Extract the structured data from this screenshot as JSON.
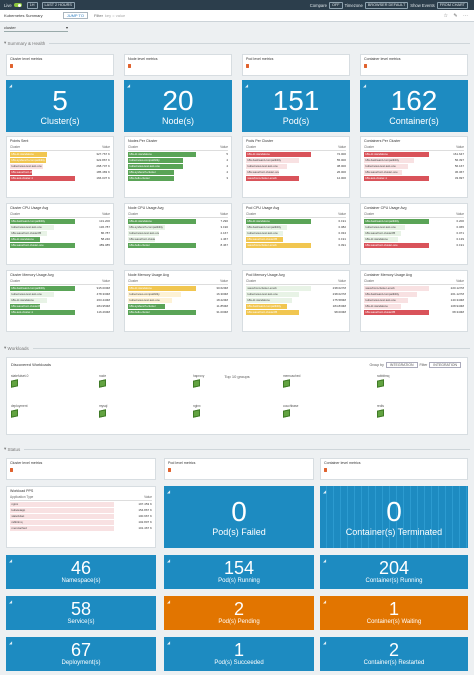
{
  "topbar": {
    "live": "Live",
    "one_h": "1H",
    "last": "LAST 2 HOURS",
    "compare": "Compare",
    "compare_val": "OFF",
    "timezone": "Timezone",
    "timezone_val": "BROWSER DEFAULT",
    "show_events": "Show Events",
    "show_events_val": "FROM CHART"
  },
  "dashbar": {
    "title": "Kubernetes Summary",
    "jump": "JUMP TO",
    "filter": "Filter",
    "filter_ph": "key = value"
  },
  "variable": {
    "label": "cluster"
  },
  "sections": {
    "summary": "Summary & Health",
    "workloads": "Workloads",
    "status": "Status"
  },
  "row1_titles": [
    "Cluster level metrics",
    "Node level metrics",
    "Pod level metrics",
    "Container level metrics"
  ],
  "stats1": [
    {
      "num": "5",
      "label": "Cluster(s)"
    },
    {
      "num": "20",
      "label": "Node(s)"
    },
    {
      "num": "151",
      "label": "Pod(s)"
    },
    {
      "num": "162",
      "label": "Container(s)"
    }
  ],
  "tables": [
    {
      "title": "Points Sent",
      "col": "Cluster",
      "val": "Value",
      "rows": [
        {
          "t": "k8s-dr-standalone",
          "v": "327.767 K",
          "c": "y",
          "w": 0.5
        },
        {
          "t": "k8s-sysbench-compatibility",
          "v": "322.867 K",
          "c": "y",
          "w": 0.48
        },
        {
          "t": "kubernetes-test-test-one",
          "v": "268.707 K",
          "c": "lr",
          "w": 0.45
        },
        {
          "t": "k8s-wavefront-cluster",
          "v": "185.483 K",
          "c": "r",
          "w": 0.3
        },
        {
          "t": "k8s-test-cluster-1",
          "v": "166.037 K",
          "c": "r",
          "w": 0.88
        }
      ]
    },
    {
      "title": "Nodes Per Cluster",
      "col": "Cluster",
      "val": "Value",
      "rows": [
        {
          "t": "k8s-dr-standalone",
          "v": "5",
          "c": "g",
          "w": 0.92
        },
        {
          "t": "kubernetes-compatibility",
          "v": "4",
          "c": "g",
          "w": 0.74
        },
        {
          "t": "kubernetes-test-test-one",
          "v": "4",
          "c": "g",
          "w": 0.74
        },
        {
          "t": "k8s-sysbench-cluster",
          "v": "4",
          "c": "g",
          "w": 0.62
        },
        {
          "t": "k8s-hello-cluster",
          "v": "3",
          "c": "g",
          "w": 0.62
        }
      ]
    },
    {
      "title": "Pods Per Cluster",
      "col": "Cluster",
      "val": "Value",
      "rows": [
        {
          "t": "k8s-dr-standalone",
          "v": "72.000",
          "c": "r",
          "w": 0.88
        },
        {
          "t": "k8s-backward-compatibility",
          "v": "55.000",
          "c": "lr",
          "w": 0.72
        },
        {
          "t": "kubernetes-test-test-one",
          "v": "38.000",
          "c": "lr",
          "w": 0.56
        },
        {
          "t": "k8s-wavefront-cluster-one",
          "v": "26.000",
          "c": "lr",
          "w": 0.44
        },
        {
          "t": "wavefront-cluster-emob",
          "v": "12.000",
          "c": "r",
          "w": 0.72
        }
      ]
    },
    {
      "title": "Containers Per Cluster",
      "col": "Cluster",
      "val": "Value",
      "rows": [
        {
          "t": "k8s-dr-standalone",
          "v": "161.647",
          "c": "r",
          "w": 0.88
        },
        {
          "t": "k8s-backward-compatibility",
          "v": "56.397",
          "c": "lr",
          "w": 0.68
        },
        {
          "t": "kubernetes-test-test-one",
          "v": "56.167",
          "c": "lr",
          "w": 0.6
        },
        {
          "t": "k8s-wavefront-cluster-one",
          "v": "36.367",
          "c": "lr",
          "w": 0.52
        },
        {
          "t": "k8s-test-cluster-1",
          "v": "33.997",
          "c": "r",
          "w": 0.88
        }
      ]
    },
    {
      "title": "Cluster CPU Usage Avg",
      "col": "Cluster",
      "val": "Value",
      "rows": [
        {
          "t": "k8s-backward-compatibility",
          "v": "131.200",
          "c": "g",
          "w": 0.88
        },
        {
          "t": "kubernetes-test-test-one",
          "v": "136.787",
          "c": "lg",
          "w": 0.6
        },
        {
          "t": "k8s-wavefront-cluster#5",
          "v": "86.787",
          "c": "lg",
          "w": 0.5
        },
        {
          "t": "k8s-dr-standalone",
          "v": "58.240",
          "c": "g",
          "w": 0.4
        },
        {
          "t": "k8s-wavefront-cluster-one",
          "v": "489.085",
          "c": "g",
          "w": 0.88
        }
      ]
    },
    {
      "title": "Node CPU Usage Avg",
      "col": "Cluster",
      "val": "Value",
      "rows": [
        {
          "t": "k8s-dr-standalone",
          "v": "7.290",
          "c": "g",
          "w": 0.92
        },
        {
          "t": "k8s-sysbench-compatibility",
          "v": "3.190",
          "c": "lg",
          "w": 0.5
        },
        {
          "t": "kubernetes-test-test-one",
          "v": "2.167",
          "c": "lg",
          "w": 0.42
        },
        {
          "t": "k8s-wavefront-cluster#5",
          "v": "1.467",
          "c": "lg",
          "w": 0.36
        },
        {
          "t": "k8s-hello-cluster",
          "v": "8.467",
          "c": "g",
          "w": 0.92
        }
      ]
    },
    {
      "title": "Pod CPU Usage Avg",
      "col": "Cluster",
      "val": "Value",
      "rows": [
        {
          "t": "k8s-dr-standalone",
          "v": "0.191",
          "c": "g",
          "w": 0.88
        },
        {
          "t": "k8s-backward-compatibility",
          "v": "0.082",
          "c": "lg",
          "w": 0.56
        },
        {
          "t": "kubernetes-test-test-one",
          "v": "0.034",
          "c": "lg",
          "w": 0.5
        },
        {
          "t": "k8s-wavefront-cluster#5",
          "v": "0.191",
          "c": "y",
          "w": 0.5
        },
        {
          "t": "wavefront-cluster-emob",
          "v": "0.091",
          "c": "y",
          "w": 0.88
        }
      ]
    },
    {
      "title": "Container CPU Usage Avg",
      "col": "Cluster",
      "val": "Value",
      "rows": [
        {
          "t": "k8s-backward-compatibility",
          "v": "0.200",
          "c": "g",
          "w": 0.88
        },
        {
          "t": "kubernetes-test-test-one",
          "v": "0.065",
          "c": "lg",
          "w": 0.56
        },
        {
          "t": "k8s-wavefront-cluster#5",
          "v": "0.071",
          "c": "lg",
          "w": 0.5
        },
        {
          "t": "k8s-dr-standalone",
          "v": "0.139",
          "c": "lg",
          "w": 0.46
        },
        {
          "t": "k8s-wavefront-cluster-one",
          "v": "0.191",
          "c": "r",
          "w": 0.88
        }
      ]
    },
    {
      "title": "Cluster Memory Usage Avg",
      "col": "Cluster",
      "val": "Value",
      "rows": [
        {
          "t": "k8s-backward-compatibility",
          "v": "915.000M",
          "c": "g",
          "w": 0.88
        },
        {
          "t": "kubernetes-test-test-one",
          "v": "478.330M",
          "c": "lg",
          "w": 0.6
        },
        {
          "t": "k8s-dr-standalone",
          "v": "263.440M",
          "c": "lg",
          "w": 0.5
        },
        {
          "t": "k8s-wavefront-cluster#5",
          "v": "284.950M",
          "c": "g",
          "w": 0.4
        },
        {
          "t": "k8s-test-cluster-1",
          "v": "116.290M",
          "c": "g",
          "w": 0.88
        }
      ]
    },
    {
      "title": "Node Memory Usage Avg",
      "col": "Cluster",
      "val": "Value",
      "rows": [
        {
          "t": "k8s-dr-standalone",
          "v": "30.620M",
          "c": "y",
          "w": 0.92
        },
        {
          "t": "kubernetes-compatibility",
          "v": "16.300M",
          "c": "ly",
          "w": 0.72
        },
        {
          "t": "kubernetes-test-test-one",
          "v": "18.220M",
          "c": "ly",
          "w": 0.6
        },
        {
          "t": "k8s-sysbench-cluster",
          "v": "11.850M",
          "c": "g",
          "w": 0.5
        },
        {
          "t": "k8s-hello-cluster",
          "v": "31.000M",
          "c": "g",
          "w": 0.92
        }
      ]
    },
    {
      "title": "Pod Memory Usage Avg",
      "col": "Cluster",
      "val": "Value",
      "rows": [
        {
          "t": "wavefront-cluster-emob",
          "v": "238.027M",
          "c": "lg",
          "w": 0.88
        },
        {
          "t": "kubernetes-test-test-one",
          "v": "238.027M",
          "c": "lg",
          "w": 0.72
        },
        {
          "t": "k8s-dr-standalone",
          "v": "175.580M",
          "c": "lg",
          "w": 0.62
        },
        {
          "t": "k8s-backward-compatibility",
          "v": "184.830M",
          "c": "y",
          "w": 0.56
        },
        {
          "t": "k8s-wavefront-cluster#5",
          "v": "98.000M",
          "c": "y",
          "w": 0.72
        }
      ]
    },
    {
      "title": "Container Memory Usage Avg",
      "col": "Cluster",
      "val": "Value",
      "rows": [
        {
          "t": "wavefront-cluster-emob",
          "v": "220.127M",
          "c": "lr",
          "w": 0.88
        },
        {
          "t": "k8s-backward-compatibility",
          "v": "201.127M",
          "c": "lr",
          "w": 0.72
        },
        {
          "t": "kubernetes-test-test-one",
          "v": "140.340M",
          "c": "lr",
          "w": 0.6
        },
        {
          "t": "k8s-dr-standalone",
          "v": "108.940M",
          "c": "lr",
          "w": 0.5
        },
        {
          "t": "k8s-wavefront-cluster#5",
          "v": "68.340M",
          "c": "r",
          "w": 0.88
        }
      ]
    }
  ],
  "workloads": {
    "title": "Discovered Workloads",
    "group_by": "Group by",
    "group_val": "INTEGRATION",
    "filter_label": "Filter",
    "filter_val": "INTEGRATION",
    "top": "Top 10 groups",
    "nodes": [
      "statefulset-0",
      "node",
      "haproxy",
      "memcached",
      "rabbitmq",
      "deployment",
      "mysql",
      "nginx",
      "couchbase",
      "redis"
    ]
  },
  "status": {
    "row_titles": [
      "Cluster level metrics",
      "Pod level metrics",
      "Container level metrics"
    ],
    "pps": {
      "title": "Workload PPS",
      "col": "Application Type",
      "val": "Value",
      "rows": [
        {
          "t": "nginx",
          "v": "197.453 K",
          "c": "lr",
          "w": 0.9
        },
        {
          "t": "kubeletapp",
          "v": "154.867 K",
          "c": "lr",
          "w": 0.9
        },
        {
          "t": "statefulset",
          "v": "100.967 K",
          "c": "lr",
          "w": 0.9
        },
        {
          "t": "rabbitmq",
          "v": "102.807 K",
          "c": "lr",
          "w": 0.9
        },
        {
          "t": "memcached",
          "v": "101.467 K",
          "c": "lr",
          "w": 0.9
        }
      ]
    },
    "stats": [
      {
        "num": "0",
        "label": "Pod(s) Failed",
        "color": "blue"
      },
      {
        "num": "0",
        "label": "Container(s) Terminated",
        "color": "stripes"
      },
      {
        "num": "46",
        "label": "Namespace(s)",
        "color": "blue"
      },
      {
        "num": "154",
        "label": "Pod(s) Running",
        "color": "blue"
      },
      {
        "num": "204",
        "label": "Container(s) Running",
        "color": "blue"
      },
      {
        "num": "58",
        "label": "Service(s)",
        "color": "blue"
      },
      {
        "num": "2",
        "label": "Pod(s) Pending",
        "color": "orange"
      },
      {
        "num": "1",
        "label": "Container(s) Waiting",
        "color": "orange"
      },
      {
        "num": "67",
        "label": "Deployment(s)",
        "color": "blue"
      },
      {
        "num": "1",
        "label": "Pod(s) Succeeded",
        "color": "blue"
      },
      {
        "num": "2",
        "label": "Container(s) Restarted",
        "color": "blue"
      }
    ]
  }
}
